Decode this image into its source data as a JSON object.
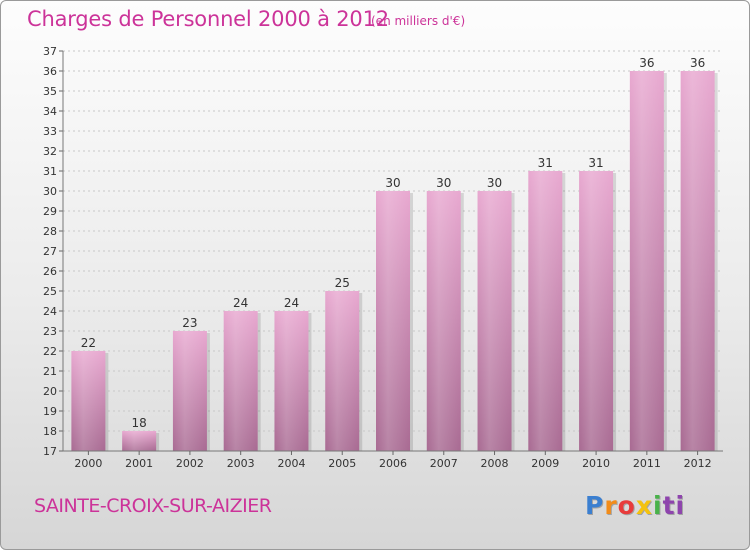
{
  "title": "Charges de Personnel 2000 à 2012",
  "subtitle": "(en milliers d'€)",
  "commune": "SAINTE-CROIX-SUR-AIZIER",
  "logo": {
    "parts": [
      "P",
      "r",
      "o",
      "x",
      "i",
      "ti"
    ]
  },
  "colors": {
    "title": "#cc3399",
    "bar_top": "#e8a8d0",
    "bar_bottom": "#a86a92",
    "axis_text": "#333333"
  },
  "chart_data": {
    "type": "bar",
    "categories": [
      "2000",
      "2001",
      "2002",
      "2003",
      "2004",
      "2005",
      "2006",
      "2007",
      "2008",
      "2009",
      "2010",
      "2011",
      "2012"
    ],
    "values": [
      22,
      18,
      23,
      24,
      24,
      25,
      30,
      30,
      30,
      31,
      31,
      36,
      36
    ],
    "title": "Charges de Personnel 2000 à 2012",
    "xlabel": "",
    "ylabel": "",
    "ylim": [
      17,
      37
    ],
    "yticks": [
      17,
      18,
      19,
      20,
      21,
      22,
      23,
      24,
      25,
      26,
      27,
      28,
      29,
      30,
      31,
      32,
      33,
      34,
      35,
      36,
      37
    ],
    "grid": true,
    "data_labels": true
  }
}
